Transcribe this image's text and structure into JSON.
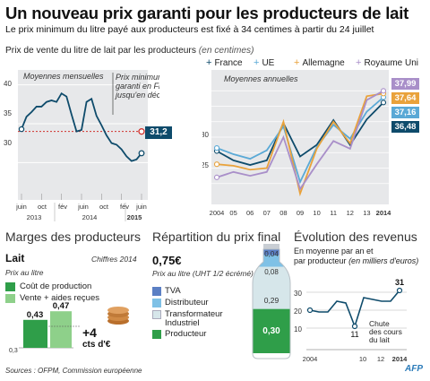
{
  "header": {
    "title": "Un nouveau prix garanti pour les producteurs de lait",
    "subtitle": "Le prix minimum du litre payé aux producteurs est fixé à 34 centimes à partir du 24 juillet",
    "price_label": "Prix de vente du litre de lait par les producteurs",
    "price_unit": "(en centimes)"
  },
  "legend": [
    {
      "label": "France",
      "color": "#0e4b6b",
      "marker": "+"
    },
    {
      "label": "UE",
      "color": "#5aa9d6",
      "marker": "+"
    },
    {
      "label": "Allemagne",
      "color": "#e9a23b",
      "marker": "+"
    },
    {
      "label": "Royaume Uni",
      "color": "#a98fc9",
      "marker": "+"
    }
  ],
  "monthly": {
    "subtitle": "Moyennes mensuelles",
    "callout": [
      "Prix minimum",
      "garanti en France",
      "jusqu'en décembre"
    ],
    "min_price_label": "34",
    "end_label": "31,2",
    "yticks": [
      "40",
      "35",
      "30"
    ],
    "xmonths": [
      "juin",
      "oct",
      "fév",
      "juin",
      "oct",
      "fév",
      "juin"
    ],
    "xyears": [
      "2013",
      "2014",
      "2015"
    ]
  },
  "annual": {
    "subtitle": "Moyennes annuelles",
    "yticks": [
      "30",
      "25"
    ],
    "xticks": [
      "2004",
      "05",
      "06",
      "07",
      "08",
      "09",
      "10",
      "11",
      "12",
      "13",
      "2014"
    ],
    "end_labels": [
      "37,99",
      "37,64",
      "37,16",
      "36,48"
    ]
  },
  "margins": {
    "title": "Marges des producteurs",
    "product": "Lait",
    "source_year": "Chiffres 2014",
    "unit": "Prix au litre",
    "key_cost": "Coût de production",
    "key_sales": "Vente + aides reçues",
    "bar_cost_label": "0,43",
    "bar_sales_label": "0,47",
    "axis_min": "0,3",
    "diff_value": "+4",
    "diff_unit": "cts d'€"
  },
  "repartition": {
    "title": "Répartition du prix final",
    "price": "0,75€",
    "unit": "Prix au litre (UHT 1/2 écrémé)",
    "keys": [
      "TVA",
      "Distributeur",
      "Transformateur",
      "Industriel",
      "Producteur"
    ],
    "values": [
      "0,04",
      "0,08",
      "0,29",
      "0,30"
    ]
  },
  "revenus": {
    "title": "Évolution des revenus",
    "subtitle_line1": "En moyenne par an et",
    "subtitle_line2_a": "par producteur",
    "subtitle_line2_b": "(en milliers d'euros)",
    "yticks": [
      "30",
      "20",
      "10"
    ],
    "xticks": [
      "2004",
      "10",
      "12",
      "2014"
    ],
    "label_31": "31",
    "label_11": "11",
    "annotation": [
      "Chute",
      "des cours",
      "du lait"
    ]
  },
  "footer": {
    "source": "Sources : OFPM, Commission européenne",
    "logo": "AFP"
  },
  "chart_data": [
    {
      "type": "line",
      "title": "Moyennes mensuelles",
      "x_range": [
        "2013-06",
        "2015-06"
      ],
      "ylim": [
        26,
        41
      ],
      "series": [
        {
          "name": "France",
          "values": [
            34.3,
            35.9,
            36.5,
            37.2,
            37.2,
            37.8,
            38.0,
            37.8,
            38.9,
            38.5,
            36.2,
            34.0,
            34.2,
            37.8,
            38.2,
            36.0,
            34.8,
            33.5,
            32.5,
            32.3,
            31.7,
            30.8,
            30.2,
            30.4,
            31.2
          ]
        }
      ],
      "reference_line": {
        "value": 34,
        "label": "34"
      },
      "end_value": 31.2
    },
    {
      "type": "line",
      "title": "Moyennes annuelles",
      "x": [
        2004,
        2005,
        2006,
        2007,
        2008,
        2009,
        2010,
        2011,
        2012,
        2013,
        2014
      ],
      "ylim": [
        24,
        40
      ],
      "series": [
        {
          "name": "France",
          "values": [
            30.2,
            29.0,
            28.4,
            29.0,
            33.8,
            29.5,
            31.0,
            34.2,
            31.0,
            34.3,
            36.48
          ]
        },
        {
          "name": "UE",
          "values": [
            30.6,
            29.8,
            29.2,
            30.3,
            33.4,
            26.2,
            30.7,
            33.6,
            31.8,
            35.3,
            37.16
          ]
        },
        {
          "name": "Allemagne",
          "values": [
            28.5,
            28.3,
            27.8,
            28.0,
            34.0,
            24.7,
            30.5,
            34.0,
            31.2,
            37.3,
            37.64
          ]
        },
        {
          "name": "Royaume Uni",
          "values": [
            26.8,
            27.5,
            27.0,
            27.5,
            32.0,
            25.3,
            28.5,
            31.5,
            30.5,
            36.8,
            37.99
          ]
        }
      ]
    },
    {
      "type": "bar",
      "title": "Marges des producteurs",
      "categories": [
        "Coût de production",
        "Vente + aides reçues"
      ],
      "values": [
        0.43,
        0.47
      ],
      "ylim": [
        0.3,
        0.5
      ]
    },
    {
      "type": "bar",
      "title": "Répartition du prix final",
      "categories": [
        "Producteur",
        "Transformateur Industriel",
        "Distributeur",
        "TVA"
      ],
      "values": [
        0.3,
        0.29,
        0.08,
        0.04
      ],
      "total": 0.75
    },
    {
      "type": "line",
      "title": "Évolution des revenus",
      "x": [
        2004,
        2005,
        2006,
        2007,
        2008,
        2009,
        2010,
        2011,
        2012,
        2013,
        2014
      ],
      "ylim": [
        5,
        35
      ],
      "series": [
        {
          "name": "",
          "values": [
            20,
            19,
            19,
            25,
            24,
            11,
            27,
            26,
            25,
            25,
            31
          ]
        }
      ]
    }
  ]
}
